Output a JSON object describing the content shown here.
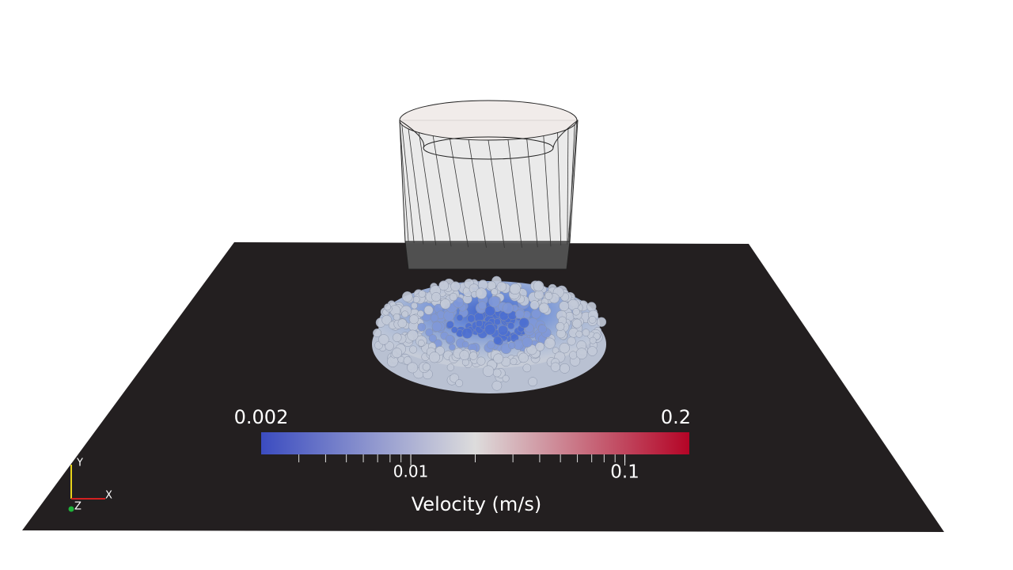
{
  "colorbar": {
    "title": "Velocity (m/s)",
    "range": [
      0.002,
      0.2
    ],
    "log": true,
    "ticks": [
      0.01,
      0.1
    ],
    "colormap": [
      "#3b4cc0",
      "#dddcdc",
      "#b40426"
    ]
  },
  "axes_triad": {
    "x": "X",
    "y": "Y",
    "z": "Z"
  }
}
